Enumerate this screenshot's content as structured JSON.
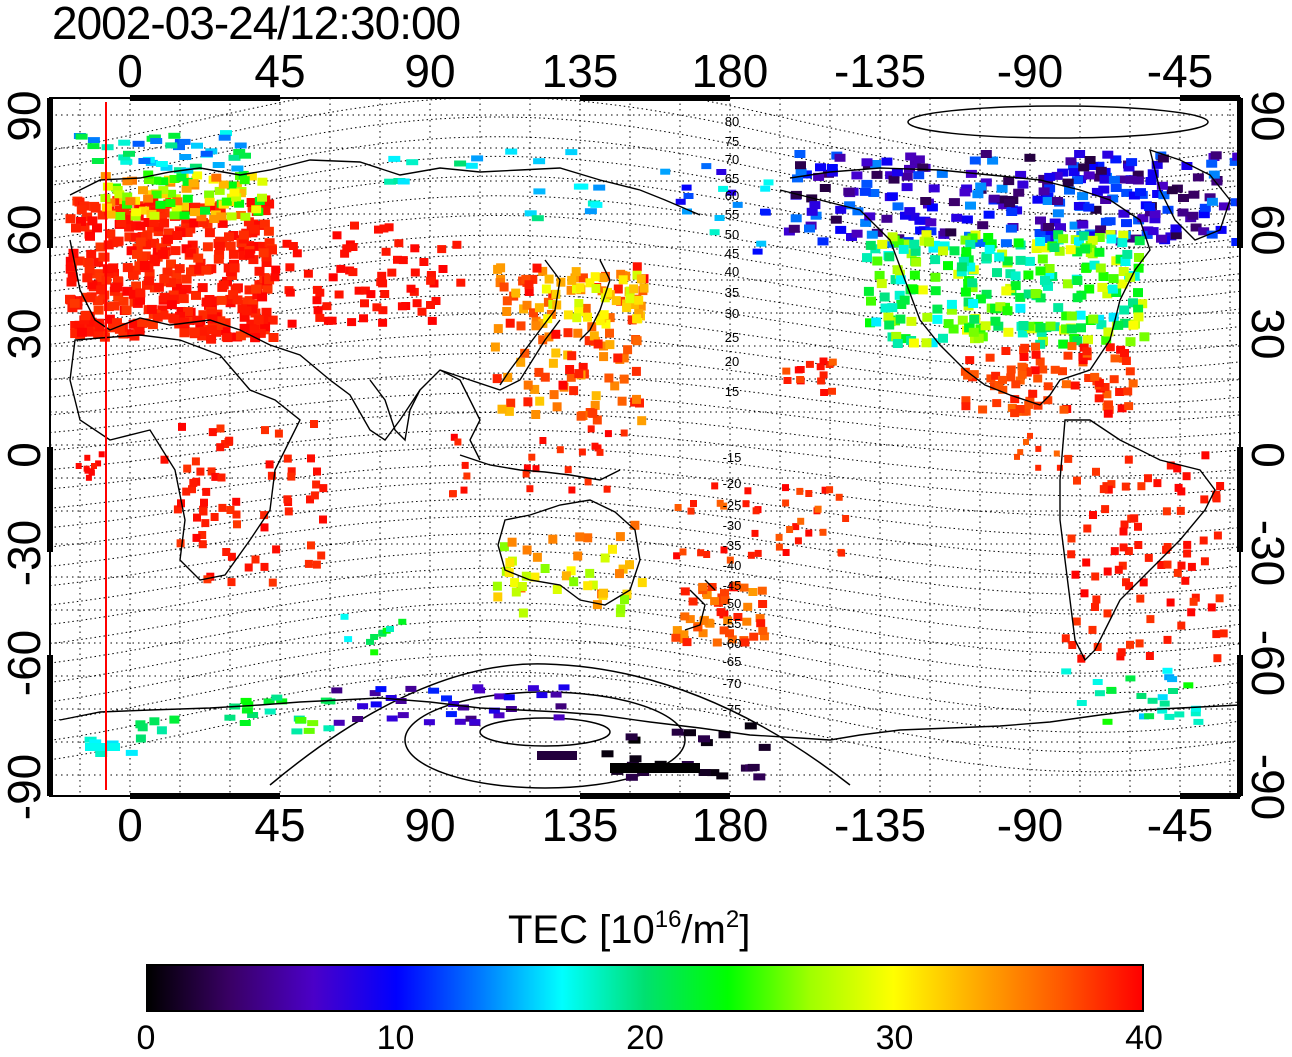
{
  "timestamp": "2002-03-24/12:30:00",
  "map": {
    "x_ticks_top": [
      "0",
      "45",
      "90",
      "135",
      "180",
      "-135",
      "-90",
      "-45"
    ],
    "x_ticks_bottom": [
      "0",
      "45",
      "90",
      "135",
      "180",
      "-135",
      "-90",
      "-45"
    ],
    "y_ticks_left": [
      "90",
      "60",
      "30",
      "0",
      "-30",
      "-60",
      "-90"
    ],
    "y_ticks_right": [
      "90",
      "60",
      "30",
      "0",
      "-30",
      "-60",
      "-90"
    ],
    "contour_labels_north": [
      "80",
      "75",
      "70",
      "65",
      "60",
      "55",
      "50",
      "45",
      "40",
      "35",
      "30",
      "25",
      "20",
      "15"
    ],
    "contour_labels_south": [
      "-15",
      "-20",
      "-25",
      "-30",
      "-35",
      "-40",
      "-45",
      "-50",
      "-55",
      "-60",
      "-65",
      "-70",
      "-75"
    ],
    "reference_line_color": "#ff0000",
    "coastline_color": "#000000"
  },
  "colorbar": {
    "title_main": "TEC  [10",
    "title_sup1": "16",
    "title_mid": "/m",
    "title_sup2": "2",
    "title_end": "]",
    "ticks": [
      "0",
      "10",
      "20",
      "30",
      "40"
    ],
    "colors": [
      "#000000",
      "#3a0066",
      "#4b00c8",
      "#0000ff",
      "#0078ff",
      "#00ffff",
      "#00e070",
      "#00ff00",
      "#a0ff00",
      "#ffff00",
      "#ffaa00",
      "#ff5a00",
      "#ff0000"
    ]
  }
}
